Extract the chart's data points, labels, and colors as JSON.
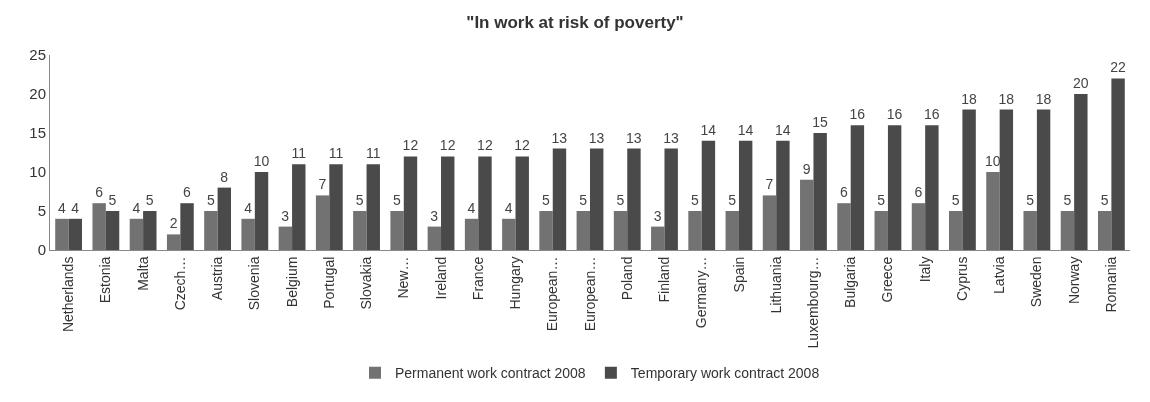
{
  "chart_data": {
    "type": "bar",
    "title": "\"In work at risk of poverty\"",
    "categories": [
      "Netherlands",
      "Estonia",
      "Malta",
      "Czech…",
      "Austria",
      "Slovenia",
      "Belgium",
      "Portugal",
      "Slovakia",
      "New…",
      "Ireland",
      "France",
      "Hungary",
      "European…",
      "European…",
      "Poland",
      "Finland",
      "Germany…",
      "Spain",
      "Lithuania",
      "Luxembourg…",
      "Bulgaria",
      "Greece",
      "Italy",
      "Cyprus",
      "Latvia",
      "Sweden",
      "Norway",
      "Romania"
    ],
    "series": [
      {
        "name": "Permanent work contract 2008",
        "color": "#727272",
        "values": [
          4,
          6,
          4,
          2,
          5,
          4,
          3,
          7,
          5,
          5,
          3,
          4,
          4,
          5,
          5,
          5,
          3,
          5,
          5,
          7,
          9,
          6,
          5,
          6,
          5,
          10,
          5,
          5,
          5
        ]
      },
      {
        "name": "Temporary work contract 2008",
        "color": "#4a4a4a",
        "values": [
          4,
          5,
          5,
          6,
          8,
          10,
          11,
          11,
          11,
          12,
          12,
          12,
          12,
          13,
          13,
          13,
          13,
          14,
          14,
          14,
          15,
          16,
          16,
          16,
          18,
          18,
          18,
          20,
          22
        ]
      }
    ],
    "ylim": [
      0,
      25
    ],
    "yticks": [
      0,
      5,
      10,
      15,
      20,
      25
    ],
    "data_labels": true,
    "legend": "bottom"
  }
}
